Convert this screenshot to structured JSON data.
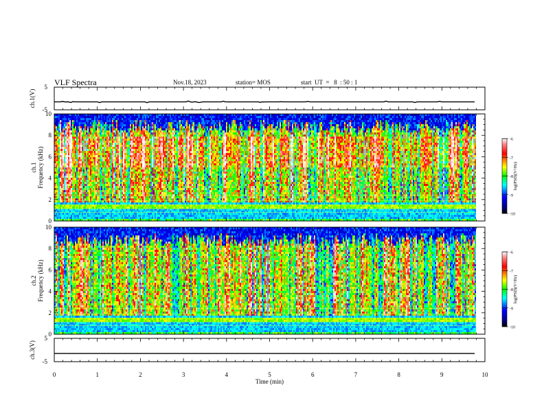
{
  "header": {
    "title": "VLF Spectra",
    "date": "Nov.18, 2023",
    "station": "station= MOS",
    "start_time": "start  UT  =   8  : 50 : 1"
  },
  "chart_data": [
    {
      "type": "line",
      "name": "ch1-voltage",
      "ylabel": "ch.1(V)",
      "ylim": [
        -5,
        5
      ],
      "yticks": [
        "5",
        "-5"
      ],
      "xlim": [
        0,
        10
      ],
      "series": [
        {
          "values_desc": "flat trace near -1.5 V",
          "level": -1.5
        }
      ]
    },
    {
      "type": "heatmap",
      "name": "ch1-spectrogram",
      "ylabel": "ch.1\nFrequency (kHz)",
      "ylabel_lines": [
        "ch.1",
        "Frequency (kHz)"
      ],
      "ylim": [
        0,
        10
      ],
      "yticks": [
        "0",
        "2",
        "4",
        "6",
        "8",
        "10"
      ],
      "xlim": [
        0,
        9.8
      ],
      "colorbar": {
        "label": "log(PSD)(V²/Hz)",
        "range": [
          -10,
          -6
        ],
        "ticks": [
          "-6",
          "-7",
          "-8",
          "-9",
          "-10"
        ]
      },
      "dominant_band_kHz": [
        2,
        9.5
      ],
      "low_band_kHz": [
        0.3,
        1.8
      ]
    },
    {
      "type": "heatmap",
      "name": "ch2-spectrogram",
      "ylabel": "ch.2\nFrequency (kHz)",
      "ylabel_lines": [
        "ch.2",
        "Frequency (kHz)"
      ],
      "ylim": [
        0,
        10
      ],
      "yticks": [
        "0",
        "2",
        "4",
        "6",
        "8",
        "10"
      ],
      "xlim": [
        0,
        9.8
      ],
      "colorbar": {
        "label": "log(PSD)(V²/Hz)",
        "range": [
          -10,
          -6
        ],
        "ticks": [
          "-6",
          "-7",
          "-8",
          "-9",
          "-10"
        ]
      },
      "dominant_band_kHz": [
        2,
        9.5
      ],
      "low_band_kHz": [
        0.3,
        1.8
      ]
    },
    {
      "type": "line",
      "name": "ch3-voltage",
      "ylabel": "ch.3(V)",
      "ylim": [
        -5,
        5
      ],
      "yticks": [
        "5",
        "-5"
      ],
      "xlim": [
        0,
        10
      ],
      "series": [
        {
          "values_desc": "flat trace near -1.5 V",
          "level": -1.5
        }
      ]
    }
  ],
  "xaxis": {
    "label": "Time  (min)",
    "ticks": [
      "0",
      "1",
      "2",
      "3",
      "4",
      "5",
      "6",
      "7",
      "8",
      "9",
      "10"
    ]
  },
  "colors": {
    "colormap": [
      "#000080",
      "#0000ff",
      "#00ffff",
      "#00ff00",
      "#ffff00",
      "#ff0000",
      "#ffc0c0",
      "#ffffff"
    ],
    "trace": "#000000"
  }
}
